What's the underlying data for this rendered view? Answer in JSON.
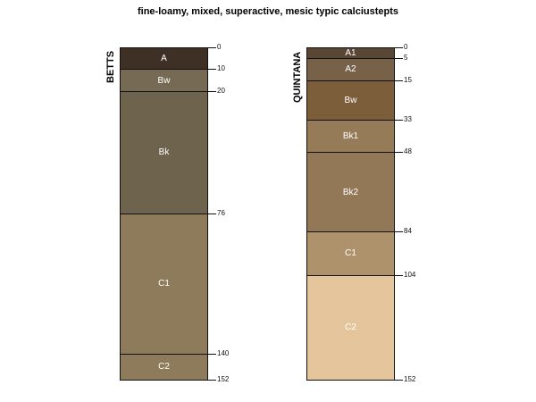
{
  "title": "fine-loamy, mixed, superactive, mesic typic calciustepts",
  "max_depth": 152,
  "profiles": [
    {
      "name": "BETTS",
      "horizons": [
        {
          "name": "A",
          "top": 0,
          "bottom": 10,
          "color": "#3e3024"
        },
        {
          "name": "Bw",
          "top": 10,
          "bottom": 20,
          "color": "#776a54"
        },
        {
          "name": "Bk",
          "top": 20,
          "bottom": 76,
          "color": "#6e634d"
        },
        {
          "name": "C1",
          "top": 76,
          "bottom": 140,
          "color": "#8e7b5c"
        },
        {
          "name": "C2",
          "top": 140,
          "bottom": 152,
          "color": "#8e7b5c"
        }
      ]
    },
    {
      "name": "QUINTANA",
      "horizons": [
        {
          "name": "A1",
          "top": 0,
          "bottom": 5,
          "color": "#5a4634"
        },
        {
          "name": "A2",
          "top": 5,
          "bottom": 15,
          "color": "#776148"
        },
        {
          "name": "Bw",
          "top": 15,
          "bottom": 33,
          "color": "#7c5f3a"
        },
        {
          "name": "Bk1",
          "top": 33,
          "bottom": 48,
          "color": "#957b58"
        },
        {
          "name": "Bk2",
          "top": 48,
          "bottom": 84,
          "color": "#937857"
        },
        {
          "name": "C1",
          "top": 84,
          "bottom": 104,
          "color": "#ae926b"
        },
        {
          "name": "C2",
          "top": 104,
          "bottom": 152,
          "color": "#e5c69c"
        }
      ]
    }
  ]
}
